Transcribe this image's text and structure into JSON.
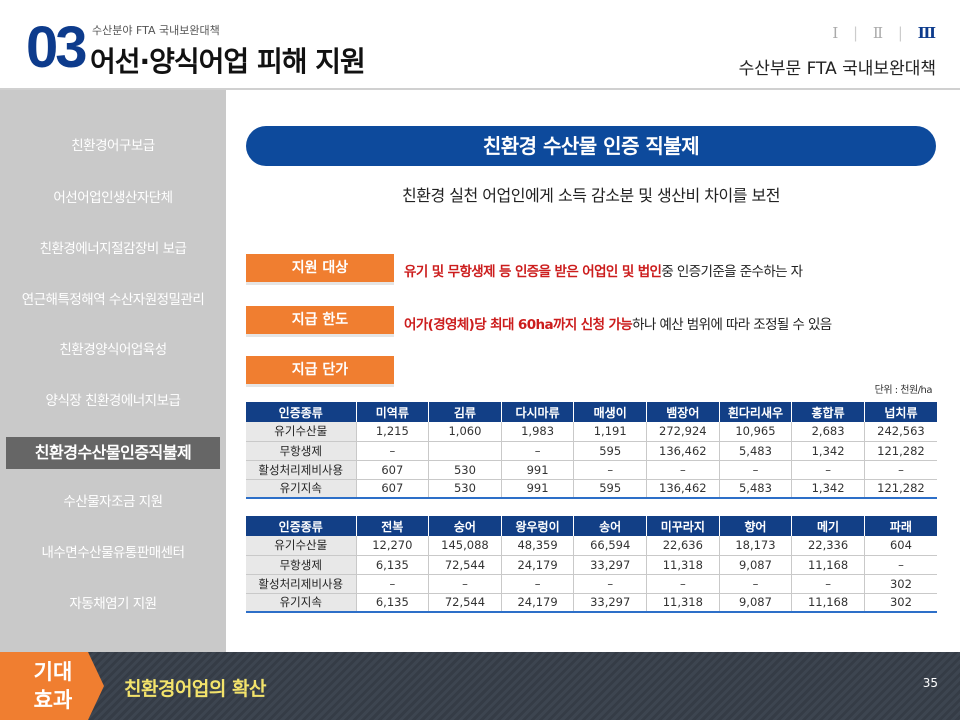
{
  "header": {
    "section_number": "03",
    "section_sub": "수산분야 FTA 국내보완대책",
    "section_title": "어선·양식어업 피해 지원",
    "roman": [
      "Ⅰ",
      "Ⅱ",
      "Ⅲ"
    ],
    "right_title": "수산부문 FTA 국내보완대책"
  },
  "sidebar": {
    "items": [
      {
        "label": "친환경어구보급"
      },
      {
        "label": "어선어업인생산자단체"
      },
      {
        "label": "친환경에너지절감장비 보급"
      },
      {
        "label": "연근해특정해역 수산자원정밀관리"
      },
      {
        "label": "친환경양식어업육성"
      },
      {
        "label": "양식장 친환경에너지보급"
      },
      {
        "label": "친환경수산물인증직불제"
      },
      {
        "label": "수산물자조금 지원"
      },
      {
        "label": "내수면수산물유통판매센터"
      },
      {
        "label": "자동채염기 지원"
      }
    ],
    "active_index": 6
  },
  "main": {
    "banner": "친환경 수산물 인증 직불제",
    "subtitle": "친환경 실천 어업인에게 소득 감소분 및 생산비 차이를 보전",
    "support_target": {
      "label": "지원 대상",
      "highlight": "유기 및 무항생제 등 인증을 받은 어업인 및 법인",
      "rest": "중 인증기준을 준수하는 자"
    },
    "support_limit": {
      "label": "지급 한도",
      "highlight": "어가(경영체)당 최대 60ha까지 신청 가능",
      "rest": "하나 예산 범위에 따라 조정될 수 있음"
    },
    "unit_price": {
      "label": "지급 단가"
    },
    "unit_note": "단위 : 천원/ha"
  },
  "tables": [
    {
      "headers": [
        "인증종류",
        "미역류",
        "김류",
        "다시마류",
        "매생이",
        "뱀장어",
        "흰다리새우",
        "홍합류",
        "넙치류"
      ],
      "rows": [
        [
          "유기수산물",
          "1,215",
          "1,060",
          "1,983",
          "1,191",
          "272,924",
          "10,965",
          "2,683",
          "242,563"
        ],
        [
          "무항생제",
          "–",
          "",
          "–",
          "595",
          "136,462",
          "5,483",
          "1,342",
          "121,282"
        ],
        [
          "활성처리제비사용",
          "607",
          "530",
          "991",
          "–",
          "–",
          "–",
          "–",
          "–"
        ],
        [
          "유기지속",
          "607",
          "530",
          "991",
          "595",
          "136,462",
          "5,483",
          "1,342",
          "121,282"
        ]
      ]
    },
    {
      "headers": [
        "인증종류",
        "전복",
        "숭어",
        "왕우렁이",
        "송어",
        "미꾸라지",
        "향어",
        "메기",
        "파래"
      ],
      "rows": [
        [
          "유기수산물",
          "12,270",
          "145,088",
          "48,359",
          "66,594",
          "22,636",
          "18,173",
          "22,336",
          "604"
        ],
        [
          "무항생제",
          "6,135",
          "72,544",
          "24,179",
          "33,297",
          "11,318",
          "9,087",
          "11,168",
          "–"
        ],
        [
          "활성처리제비사용",
          "–",
          "–",
          "–",
          "–",
          "–",
          "–",
          "–",
          "302"
        ],
        [
          "유기지속",
          "6,135",
          "72,544",
          "24,179",
          "33,297",
          "11,318",
          "9,087",
          "11,168",
          "302"
        ]
      ]
    }
  ],
  "footer": {
    "badge_line1": "기대",
    "badge_line2": "효과",
    "text": "친환경어업의 확산",
    "page": "35"
  },
  "colors": {
    "primary_blue": "#0d4a9c",
    "accent_orange": "#f07e30",
    "highlight_red": "#cc1d1d",
    "footer_yellow": "#f3e36b"
  }
}
